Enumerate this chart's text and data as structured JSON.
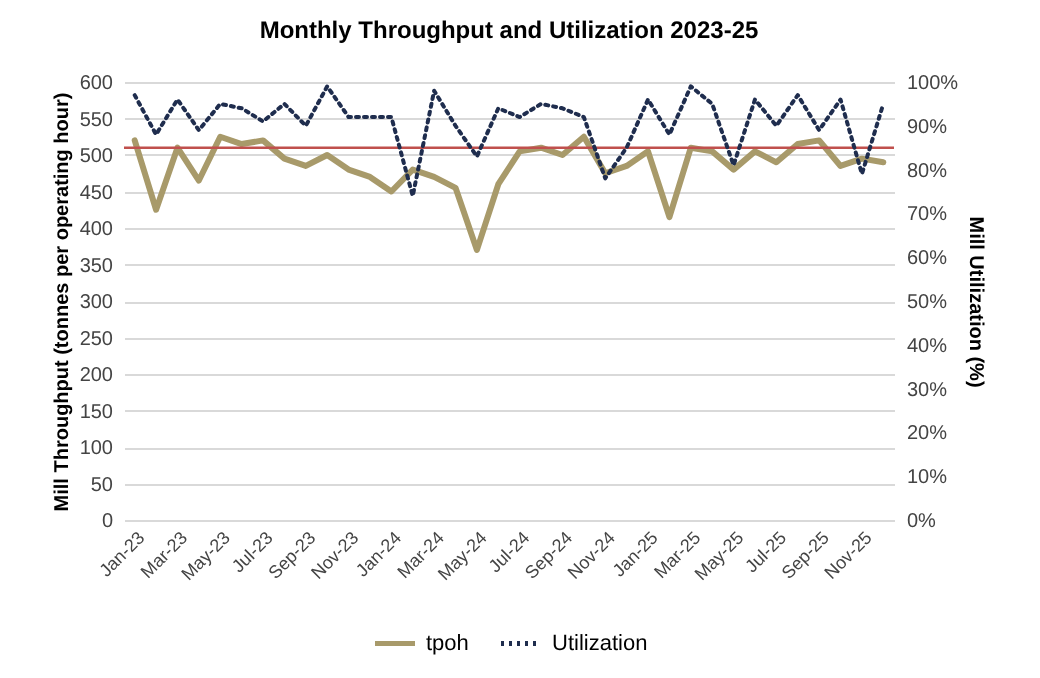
{
  "chart_data": {
    "type": "line",
    "title": "Monthly Throughput and Utilization 2023-25",
    "categories": [
      "Jan-23",
      null,
      "Mar-23",
      null,
      "May-23",
      null,
      "Jul-23",
      null,
      "Sep-23",
      null,
      "Nov-23",
      null,
      "Jan-24",
      null,
      "Mar-24",
      null,
      "May-24",
      null,
      "Jul-24",
      null,
      "Sep-24",
      null,
      "Nov-24",
      null,
      "Jan-25",
      null,
      "Mar-25",
      null,
      "May-25",
      null,
      "Jul-25",
      null,
      "Sep-25",
      null,
      "Nov-25",
      null
    ],
    "series": [
      {
        "name": "tpoh",
        "color": "#a89a6a",
        "line_style": "solid",
        "values": [
          520,
          425,
          510,
          465,
          525,
          515,
          520,
          495,
          485,
          500,
          480,
          470,
          450,
          480,
          470,
          455,
          370,
          460,
          505,
          510,
          500,
          525,
          475,
          485,
          505,
          415,
          510,
          505,
          480,
          505,
          490,
          515,
          520,
          485,
          495,
          490
        ]
      },
      {
        "name": "Utilization",
        "color": "#1f2d4e",
        "line_style": "dotted",
        "axis": "y2",
        "values": [
          97,
          88,
          96,
          89,
          95,
          94,
          91,
          95,
          90,
          99,
          92,
          92,
          92,
          74,
          98,
          90,
          83,
          94,
          92,
          95,
          94,
          92,
          78,
          85,
          96,
          88,
          99,
          95,
          81,
          96,
          90,
          97,
          89,
          96,
          79,
          95
        ]
      }
    ],
    "ylabel": "Mill Throughput (tonnes per operating hour)",
    "y2label": "Mill Utilization (%)",
    "ylim": [
      0,
      600
    ],
    "yticks": [
      0,
      50,
      100,
      150,
      200,
      250,
      300,
      350,
      400,
      450,
      500,
      550,
      600
    ],
    "y2lim": [
      0,
      100
    ],
    "y2ticks": [
      {
        "value": 0,
        "label": "0%"
      },
      {
        "value": 10,
        "label": "10%"
      },
      {
        "value": 20,
        "label": "20%"
      },
      {
        "value": 30,
        "label": "30%"
      },
      {
        "value": 40,
        "label": "40%"
      },
      {
        "value": 50,
        "label": "50%"
      },
      {
        "value": 60,
        "label": "60%"
      },
      {
        "value": 70,
        "label": "70%"
      },
      {
        "value": 80,
        "label": "80%"
      },
      {
        "value": 90,
        "label": "90%"
      },
      {
        "value": 100,
        "label": "100%"
      }
    ],
    "ref_lines": [
      {
        "axis": "y",
        "value": 510,
        "color": "#c0504d"
      }
    ],
    "grid": "y",
    "legend": "bottom"
  }
}
